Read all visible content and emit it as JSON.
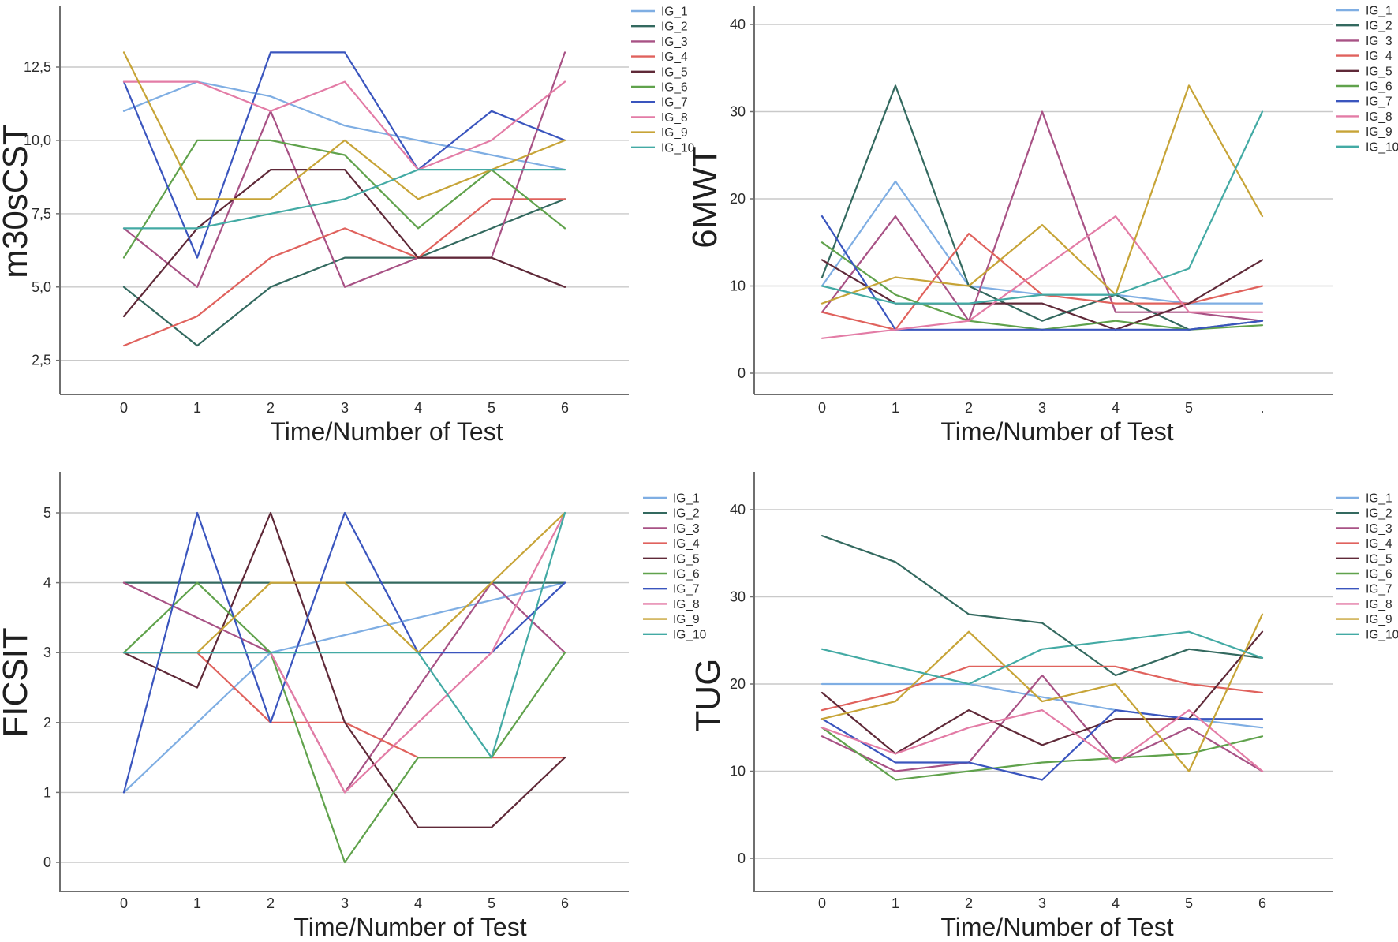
{
  "figure_type": "spss-multiline-panel",
  "x_axis_title": "Time/Number of Test",
  "legend_entries": [
    "IG_1",
    "IG_2",
    "IG_3",
    "IG_4",
    "IG_5",
    "IG_6",
    "IG_7",
    "IG_8",
    "IG_9",
    "IG_10"
  ],
  "series_colors": {
    "IG_1": "#7FAEE3",
    "IG_2": "#33695F",
    "IG_3": "#A85285",
    "IG_4": "#E0625D",
    "IG_5": "#5F2938",
    "IG_6": "#60A24C",
    "IG_7": "#3A55BE",
    "IG_8": "#E37CA6",
    "IG_9": "#C7A437",
    "IG_10": "#43AAA4"
  },
  "chart_data": [
    {
      "type": "line",
      "id": "m30sCST",
      "ylabel": "m30sCST",
      "xlabel": "Time/Number of Test",
      "x_tick_labels": [
        "0",
        "1",
        "2",
        "3",
        "4",
        "5",
        "6"
      ],
      "y_ticks": [
        {
          "value": 12.5,
          "label": "12,5"
        },
        {
          "value": 10.0,
          "label": "10,0"
        },
        {
          "value": 7.5,
          "label": "7,5"
        },
        {
          "value": 5.0,
          "label": "5,0"
        },
        {
          "value": 2.5,
          "label": "2,5"
        }
      ],
      "ylim": [
        1.4,
        14.6
      ],
      "grid": "horizontal",
      "legend_position": "right",
      "series": [
        {
          "name": "IG_1",
          "values": [
            11,
            12,
            11.5,
            10.5,
            10,
            9.5,
            9
          ]
        },
        {
          "name": "IG_2",
          "values": [
            5,
            3,
            5,
            6,
            6,
            7,
            8
          ]
        },
        {
          "name": "IG_3",
          "values": [
            7,
            5,
            11,
            5,
            6,
            6,
            13
          ]
        },
        {
          "name": "IG_4",
          "values": [
            3,
            4,
            6,
            7,
            6,
            8,
            8
          ]
        },
        {
          "name": "IG_5",
          "values": [
            4,
            7,
            9,
            9,
            6,
            6,
            5
          ]
        },
        {
          "name": "IG_6",
          "values": [
            6,
            10,
            10,
            9.5,
            7,
            9,
            7
          ]
        },
        {
          "name": "IG_7",
          "values": [
            12,
            6,
            13,
            13,
            9,
            11,
            10
          ]
        },
        {
          "name": "IG_8",
          "values": [
            12,
            12,
            11,
            12,
            9,
            10,
            12
          ]
        },
        {
          "name": "IG_9",
          "values": [
            13,
            8,
            8,
            10,
            8,
            9,
            10
          ]
        },
        {
          "name": "IG_10",
          "values": [
            7,
            7,
            7.5,
            8,
            9,
            9,
            9
          ]
        }
      ]
    },
    {
      "type": "line",
      "id": "6MWT",
      "ylabel": "6MWT",
      "xlabel": "Time/Number of Test",
      "x_tick_labels": [
        "0",
        "1",
        "2",
        "3",
        "4",
        "5",
        "."
      ],
      "y_ticks": [
        {
          "value": 40,
          "label": "40"
        },
        {
          "value": 30,
          "label": "30"
        },
        {
          "value": 20,
          "label": "20"
        },
        {
          "value": 10,
          "label": "10"
        },
        {
          "value": 0,
          "label": "0"
        }
      ],
      "ylim": [
        -2.5,
        42
      ],
      "grid": "horizontal",
      "legend_position": "right",
      "series": [
        {
          "name": "IG_1",
          "values": [
            10,
            22,
            10,
            9,
            9,
            8,
            8
          ]
        },
        {
          "name": "IG_2",
          "values": [
            11,
            33,
            10,
            6,
            9,
            5,
            6
          ]
        },
        {
          "name": "IG_3",
          "values": [
            7,
            18,
            6,
            30,
            7,
            7,
            6
          ]
        },
        {
          "name": "IG_4",
          "values": [
            7,
            5,
            16,
            9,
            8,
            8,
            10
          ]
        },
        {
          "name": "IG_5",
          "values": [
            13,
            8,
            8,
            8,
            5,
            8,
            13
          ]
        },
        {
          "name": "IG_6",
          "values": [
            15,
            9,
            6,
            5,
            6,
            5,
            5.5
          ]
        },
        {
          "name": "IG_7",
          "values": [
            18,
            5,
            5,
            5,
            5,
            5,
            6
          ]
        },
        {
          "name": "IG_8",
          "values": [
            4,
            5,
            6,
            12,
            18,
            7,
            7
          ]
        },
        {
          "name": "IG_9",
          "values": [
            8,
            11,
            10,
            17,
            9,
            33,
            18
          ]
        },
        {
          "name": "IG_10",
          "values": [
            10,
            8,
            8,
            9,
            9,
            12,
            30
          ]
        }
      ]
    },
    {
      "type": "line",
      "id": "FICSIT",
      "ylabel": "FICSIT",
      "xlabel": "Time/Number of Test",
      "x_tick_labels": [
        "0",
        "1",
        "2",
        "3",
        "4",
        "5",
        "6"
      ],
      "y_ticks": [
        {
          "value": 5,
          "label": "5"
        },
        {
          "value": 4,
          "label": "4"
        },
        {
          "value": 3,
          "label": "3"
        },
        {
          "value": 2,
          "label": "2"
        },
        {
          "value": 1,
          "label": "1"
        },
        {
          "value": 0,
          "label": "0"
        }
      ],
      "ylim": [
        -0.4,
        5.6
      ],
      "grid": "horizontal",
      "legend_position": "right",
      "series": [
        {
          "name": "IG_1",
          "values": [
            1,
            2,
            3,
            3.25,
            3.5,
            3.75,
            4
          ]
        },
        {
          "name": "IG_2",
          "values": [
            4,
            4,
            4,
            4,
            4,
            4,
            4
          ]
        },
        {
          "name": "IG_3",
          "values": [
            4,
            3.5,
            3,
            1,
            2.5,
            4,
            3
          ]
        },
        {
          "name": "IG_4",
          "values": [
            3,
            3,
            2,
            2,
            1.5,
            1.5,
            1.5
          ]
        },
        {
          "name": "IG_5",
          "values": [
            3,
            2.5,
            5,
            2,
            0.5,
            0.5,
            1.5
          ]
        },
        {
          "name": "IG_6",
          "values": [
            3,
            4,
            3,
            0,
            1.5,
            1.5,
            3
          ]
        },
        {
          "name": "IG_7",
          "values": [
            1,
            5,
            2,
            5,
            3,
            3,
            4
          ]
        },
        {
          "name": "IG_8",
          "values": [
            3,
            3,
            3,
            1,
            2,
            3,
            5
          ]
        },
        {
          "name": "IG_9",
          "values": [
            3,
            3,
            4,
            4,
            3,
            4,
            5
          ]
        },
        {
          "name": "IG_10",
          "values": [
            3,
            3,
            3,
            3,
            3,
            1.5,
            5
          ]
        }
      ]
    },
    {
      "type": "line",
      "id": "TUG",
      "ylabel": "TUG",
      "xlabel": "Time/Number of Test",
      "x_tick_labels": [
        "0",
        "1",
        "2",
        "3",
        "4",
        "5",
        "6"
      ],
      "y_ticks": [
        {
          "value": 40,
          "label": "40"
        },
        {
          "value": 30,
          "label": "30"
        },
        {
          "value": 20,
          "label": "20"
        },
        {
          "value": 10,
          "label": "10"
        },
        {
          "value": 0,
          "label": "0"
        }
      ],
      "ylim": [
        -2.5,
        42
      ],
      "grid": "horizontal",
      "legend_position": "right",
      "series": [
        {
          "name": "IG_1",
          "values": [
            20,
            20,
            20,
            18.5,
            17,
            16,
            15
          ]
        },
        {
          "name": "IG_2",
          "values": [
            37,
            34,
            28,
            27,
            21,
            24,
            23
          ]
        },
        {
          "name": "IG_3",
          "values": [
            14,
            10,
            11,
            21,
            11,
            15,
            10
          ]
        },
        {
          "name": "IG_4",
          "values": [
            17,
            19,
            22,
            22,
            22,
            20,
            19
          ]
        },
        {
          "name": "IG_5",
          "values": [
            19,
            12,
            17,
            13,
            16,
            16,
            26
          ]
        },
        {
          "name": "IG_6",
          "values": [
            15,
            9,
            10,
            11,
            11.5,
            12,
            14
          ]
        },
        {
          "name": "IG_7",
          "values": [
            16,
            11,
            11,
            9,
            17,
            16,
            16
          ]
        },
        {
          "name": "IG_8",
          "values": [
            15,
            12,
            15,
            17,
            11,
            17,
            10
          ]
        },
        {
          "name": "IG_9",
          "values": [
            16,
            18,
            26,
            18,
            20,
            10,
            28
          ]
        },
        {
          "name": "IG_10",
          "values": [
            24,
            22,
            20,
            24,
            25,
            26,
            23
          ]
        }
      ]
    }
  ]
}
